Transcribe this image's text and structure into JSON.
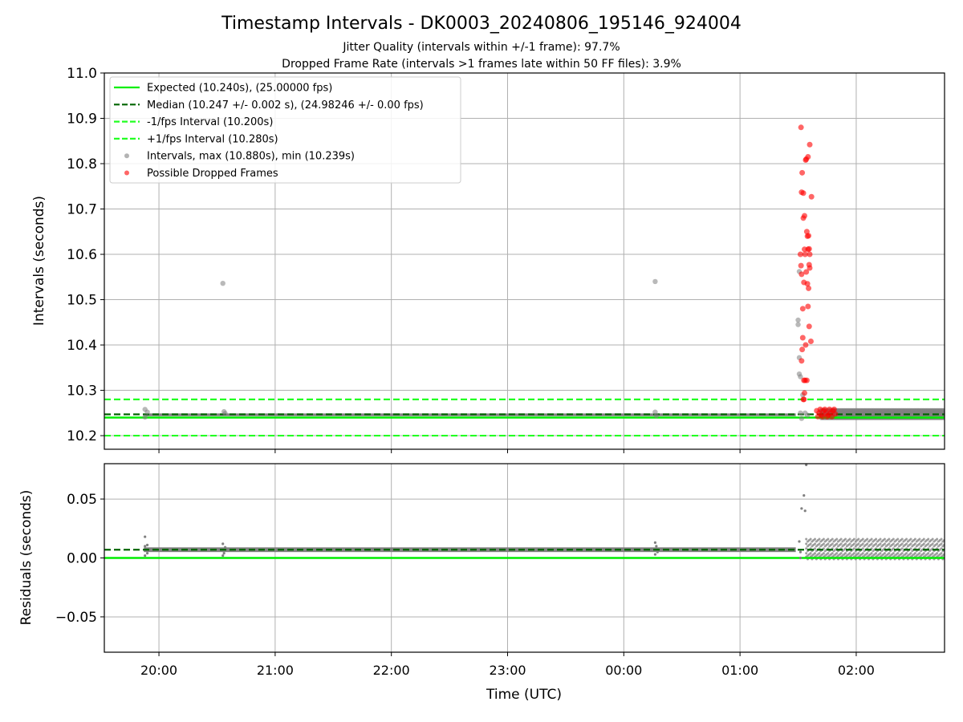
{
  "figure": {
    "title": "Timestamp Intervals - DK0003_20240806_195146_924004",
    "subtitle_1": "Jitter Quality (intervals within +/-1 frame): 97.7%",
    "subtitle_2": "Dropped Frame Rate (intervals >1 frames late within 50 FF files): 3.9%",
    "xlabel": "Time (UTC)"
  },
  "colors": {
    "expected": "#00ee00",
    "median": "#006400",
    "bounds": "#22ff22",
    "intervals": "#808080",
    "dropped": "#ff0000",
    "grid": "#b0b0b0"
  },
  "chart_data": [
    {
      "type": "scatter",
      "panel": "intervals",
      "ylabel": "Intervals (seconds)",
      "xlim_hours": [
        19.53,
        26.76
      ],
      "ylim": [
        10.17,
        11.0
      ],
      "y_ticks": [
        10.2,
        10.3,
        10.4,
        10.5,
        10.6,
        10.7,
        10.8,
        10.9,
        11.0
      ],
      "y_tick_labels": [
        "10.2",
        "10.3",
        "10.4",
        "10.5",
        "10.6",
        "10.7",
        "10.8",
        "10.9",
        "11.0"
      ],
      "x_ticks": [
        20,
        21,
        22,
        23,
        24,
        25,
        26
      ],
      "x_tick_labels": [
        "20:00",
        "21:00",
        "22:00",
        "23:00",
        "00:00",
        "01:00",
        "02:00"
      ],
      "grid": true,
      "legend_position": "top-left",
      "legend": [
        "Expected (10.240s), (25.00000 fps)",
        "Median (10.247 +/- 0.002 s), (24.98246 +/- 0.00 fps)",
        "-1/fps Interval (10.200s)",
        "+1/fps Interval (10.280s)",
        "Intervals, max (10.880s), min (10.239s)",
        "Possible Dropped Frames"
      ],
      "reference_lines": {
        "expected": 10.24,
        "median": 10.247,
        "lower_bound": 10.2,
        "upper_bound": 10.28
      },
      "baseline_band": {
        "x_start": 19.87,
        "x_end": 25.48,
        "y_low": 10.243,
        "y_high": 10.249
      },
      "late_band": {
        "x_start": 25.7,
        "x_end": 26.76,
        "y_values": [
          10.24,
          10.245,
          10.25,
          10.255
        ]
      },
      "intervals": [
        [
          19.88,
          10.258
        ],
        [
          19.88,
          10.241
        ],
        [
          19.9,
          10.252
        ],
        [
          20.55,
          10.536
        ],
        [
          20.56,
          10.253
        ],
        [
          20.57,
          10.249
        ],
        [
          24.27,
          10.54
        ],
        [
          24.27,
          10.252
        ],
        [
          24.28,
          10.244
        ],
        [
          25.5,
          10.455
        ],
        [
          25.5,
          10.445
        ],
        [
          25.51,
          10.562
        ],
        [
          25.51,
          10.372
        ],
        [
          25.51,
          10.336
        ],
        [
          25.52,
          10.33
        ],
        [
          25.53,
          10.238
        ],
        [
          25.54,
          10.29
        ],
        [
          25.52,
          10.25
        ],
        [
          25.56,
          10.25
        ],
        [
          25.58,
          10.245
        ]
      ],
      "dropped_frames": [
        [
          25.525,
          10.88
        ],
        [
          25.53,
          10.737
        ],
        [
          25.535,
          10.78
        ],
        [
          25.545,
          10.735
        ],
        [
          25.545,
          10.68
        ],
        [
          25.555,
          10.685
        ],
        [
          25.565,
          10.808
        ],
        [
          25.57,
          10.81
        ],
        [
          25.585,
          10.815
        ],
        [
          25.6,
          10.842
        ],
        [
          25.615,
          10.727
        ],
        [
          25.575,
          10.65
        ],
        [
          25.58,
          10.64
        ],
        [
          25.59,
          10.641
        ],
        [
          25.585,
          10.611
        ],
        [
          25.595,
          10.612
        ],
        [
          25.6,
          10.6
        ],
        [
          25.555,
          10.611
        ],
        [
          25.56,
          10.6
        ],
        [
          25.52,
          10.6
        ],
        [
          25.525,
          10.575
        ],
        [
          25.53,
          10.556
        ],
        [
          25.55,
          10.538
        ],
        [
          25.57,
          10.561
        ],
        [
          25.58,
          10.535
        ],
        [
          25.59,
          10.525
        ],
        [
          25.595,
          10.577
        ],
        [
          25.6,
          10.57
        ],
        [
          25.54,
          10.48
        ],
        [
          25.585,
          10.485
        ],
        [
          25.595,
          10.441
        ],
        [
          25.61,
          10.408
        ],
        [
          25.565,
          10.4
        ],
        [
          25.54,
          10.416
        ],
        [
          25.53,
          10.365
        ],
        [
          25.535,
          10.39
        ],
        [
          25.55,
          10.322
        ],
        [
          25.56,
          10.322
        ],
        [
          25.575,
          10.322
        ],
        [
          25.555,
          10.294
        ],
        [
          25.545,
          10.28
        ],
        [
          25.55,
          10.28
        ],
        [
          25.66,
          10.255
        ],
        [
          25.68,
          10.25
        ],
        [
          25.7,
          10.245
        ],
        [
          25.72,
          10.255
        ],
        [
          25.74,
          10.25
        ],
        [
          25.76,
          10.245
        ],
        [
          25.78,
          10.25
        ],
        [
          25.8,
          10.255
        ],
        [
          25.82,
          10.248
        ],
        [
          25.67,
          10.242
        ],
        [
          25.69,
          10.258
        ],
        [
          25.71,
          10.242
        ],
        [
          25.73,
          10.258
        ],
        [
          25.75,
          10.242
        ],
        [
          25.77,
          10.258
        ],
        [
          25.79,
          10.242
        ],
        [
          25.81,
          10.258
        ]
      ]
    },
    {
      "type": "scatter",
      "panel": "residuals",
      "ylabel": "Residuals (seconds)",
      "xlim_hours": [
        19.53,
        26.76
      ],
      "ylim": [
        -0.08,
        0.08
      ],
      "y_ticks": [
        -0.05,
        0.0,
        0.05
      ],
      "y_tick_labels": [
        "−0.05",
        "0.00",
        "0.05"
      ],
      "x_ticks": [
        20,
        21,
        22,
        23,
        24,
        25,
        26
      ],
      "x_tick_labels": [
        "20:00",
        "21:00",
        "22:00",
        "23:00",
        "00:00",
        "01:00",
        "02:00"
      ],
      "grid": true,
      "reference_lines": {
        "zero": 0.0,
        "median": 0.007
      },
      "baseline_band": {
        "x_start": 19.87,
        "x_end": 25.48,
        "y_low": 0.005,
        "y_high": 0.009
      },
      "late_band": {
        "x_start": 25.57,
        "x_end": 26.76,
        "y_values": [
          0.0,
          0.003,
          0.007,
          0.011,
          0.015
        ]
      },
      "residuals": [
        [
          19.88,
          0.018
        ],
        [
          19.88,
          0.01
        ],
        [
          19.88,
          0.002
        ],
        [
          19.9,
          0.011
        ],
        [
          19.9,
          0.004
        ],
        [
          20.55,
          0.012
        ],
        [
          20.55,
          0.002
        ],
        [
          20.57,
          0.009
        ],
        [
          20.56,
          0.004
        ],
        [
          24.27,
          0.013
        ],
        [
          24.27,
          0.003
        ],
        [
          24.29,
          0.005
        ],
        [
          24.28,
          0.01
        ],
        [
          25.51,
          0.014
        ],
        [
          25.52,
          0.005
        ],
        [
          25.52,
          0.0
        ],
        [
          25.53,
          0.042
        ],
        [
          25.56,
          0.04
        ],
        [
          25.55,
          0.053
        ],
        [
          25.57,
          0.079
        ]
      ]
    }
  ]
}
